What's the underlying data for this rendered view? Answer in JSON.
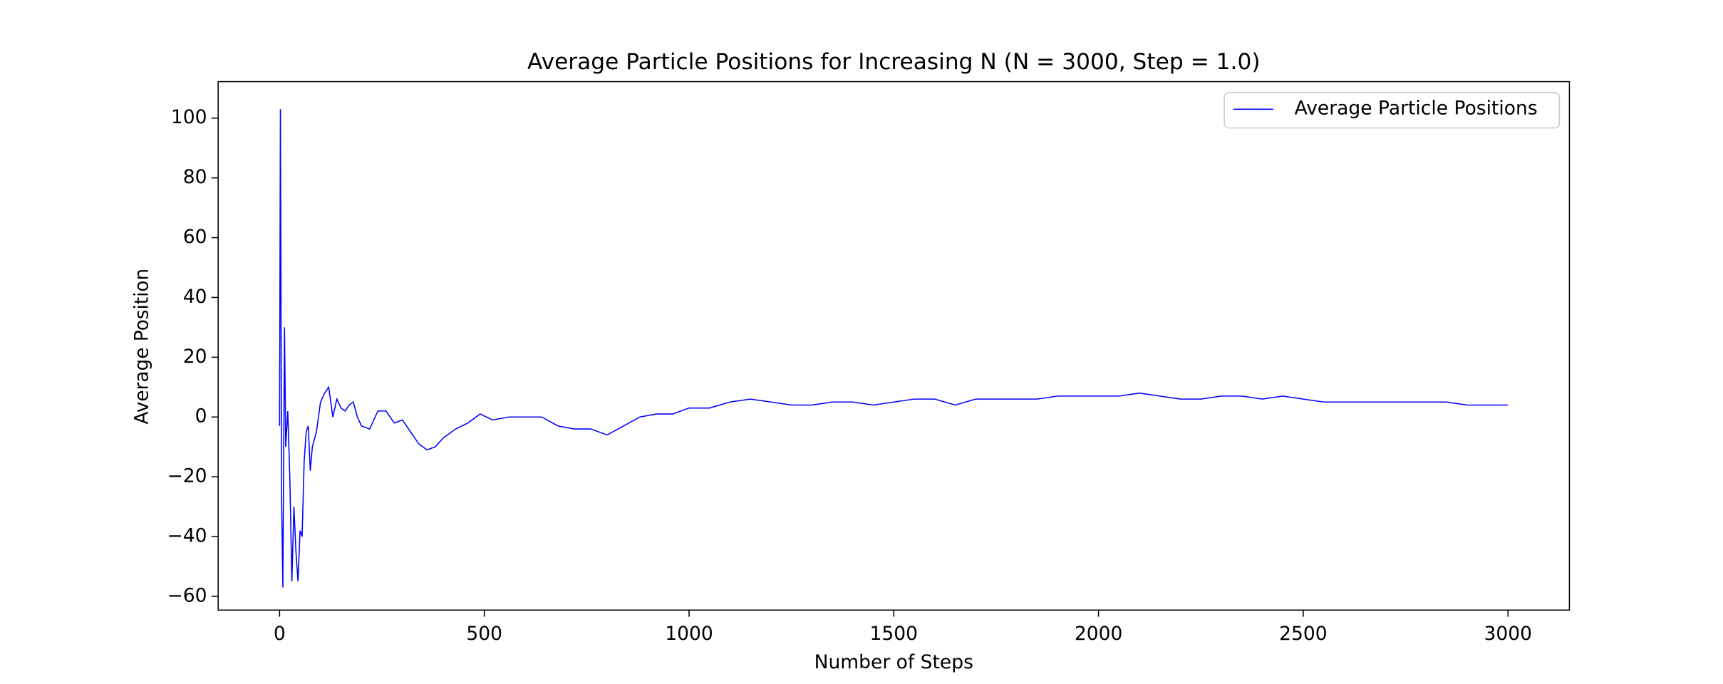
{
  "chart_data": {
    "type": "line",
    "title": "Average Particle Positions for Increasing N (N = 3000, Step = 1.0)",
    "x_label": "Number of Steps",
    "y_label": "Average Position",
    "x": [
      0,
      2,
      5,
      8,
      12,
      15,
      20,
      25,
      30,
      35,
      40,
      45,
      50,
      55,
      60,
      65,
      70,
      75,
      80,
      90,
      100,
      110,
      120,
      130,
      140,
      150,
      160,
      170,
      180,
      190,
      200,
      220,
      240,
      260,
      280,
      300,
      320,
      340,
      360,
      380,
      400,
      430,
      460,
      490,
      520,
      560,
      600,
      640,
      680,
      720,
      760,
      800,
      840,
      880,
      920,
      960,
      1000,
      1050,
      1100,
      1150,
      1200,
      1250,
      1300,
      1350,
      1400,
      1450,
      1500,
      1550,
      1600,
      1650,
      1700,
      1750,
      1800,
      1850,
      1900,
      1950,
      2000,
      2050,
      2100,
      2150,
      2200,
      2250,
      2300,
      2350,
      2400,
      2450,
      2500,
      2550,
      2600,
      2650,
      2700,
      2750,
      2800,
      2850,
      2900,
      2950,
      3000
    ],
    "series": [
      {
        "name": "Average Particle Positions",
        "color": "#0000ff",
        "values": [
          -3,
          103,
          -28,
          -57,
          30,
          -10,
          2,
          -20,
          -55,
          -30,
          -45,
          -55,
          -38,
          -40,
          -15,
          -5,
          -3,
          -18,
          -10,
          -5,
          5,
          8,
          10,
          0,
          6,
          3,
          2,
          4,
          5,
          0,
          -3,
          -4,
          2,
          2,
          -2,
          -1,
          -5,
          -9,
          -11,
          -10,
          -7,
          -4,
          -2,
          1,
          -1,
          0,
          0,
          0,
          -3,
          -4,
          -4,
          -6,
          -3,
          0,
          1,
          1,
          3,
          3,
          5,
          6,
          5,
          4,
          4,
          5,
          5,
          4,
          5,
          6,
          6,
          4,
          6,
          6,
          6,
          6,
          7,
          7,
          7,
          7,
          8,
          7,
          6,
          6,
          7,
          7,
          6,
          7,
          6,
          5,
          5,
          5,
          5,
          5,
          5,
          5,
          4,
          4,
          4
        ]
      }
    ],
    "xlim": [
      -150,
      3150
    ],
    "ylim": [
      -64.6,
      112.2
    ],
    "xticks": [
      0,
      500,
      1000,
      1500,
      2000,
      2500,
      3000
    ],
    "yticks": [
      {
        "value": -60,
        "label": "−60"
      },
      {
        "value": -40,
        "label": "−40"
      },
      {
        "value": -20,
        "label": "−20"
      },
      0,
      20,
      40,
      60,
      80,
      100
    ],
    "legend": "upper right"
  }
}
